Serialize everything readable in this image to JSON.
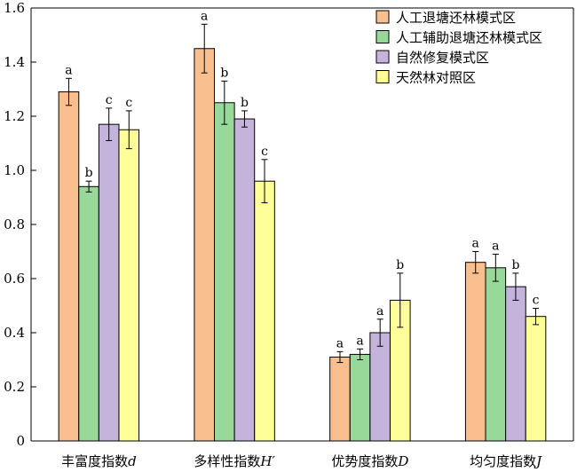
{
  "chart_data": {
    "type": "bar",
    "categories": [
      {
        "text": "丰富度指数",
        "symbol": "d"
      },
      {
        "text": "多样性指数",
        "symbol": "H′"
      },
      {
        "text": "优势度指数",
        "symbol": "D"
      },
      {
        "text": "均匀度指数",
        "symbol": "J"
      }
    ],
    "series": [
      {
        "name": "人工退塘还林模式区",
        "color": "#f9bf8f",
        "values": [
          1.29,
          1.45,
          0.31,
          0.66
        ],
        "errors": [
          0.05,
          0.09,
          0.02,
          0.04
        ],
        "letters": [
          "a",
          "a",
          "a",
          "a"
        ]
      },
      {
        "name": "人工辅助退塘还林模式区",
        "color": "#98d898",
        "values": [
          0.94,
          1.25,
          0.32,
          0.64
        ],
        "errors": [
          0.02,
          0.08,
          0.02,
          0.05
        ],
        "letters": [
          "b",
          "b",
          "a",
          "a"
        ]
      },
      {
        "name": "自然修复模式区",
        "color": "#c4b4dc",
        "values": [
          1.17,
          1.19,
          0.4,
          0.57
        ],
        "errors": [
          0.06,
          0.03,
          0.05,
          0.05
        ],
        "letters": [
          "c",
          "b",
          "a",
          "b"
        ]
      },
      {
        "name": "天然林对照区",
        "color": "#ffff99",
        "values": [
          1.15,
          0.96,
          0.52,
          0.46
        ],
        "errors": [
          0.07,
          0.08,
          0.1,
          0.03
        ],
        "letters": [
          "c",
          "c",
          "b",
          "c"
        ]
      }
    ],
    "ylim": [
      0,
      1.6
    ],
    "yticks": [
      "0",
      "0.2",
      "0.4",
      "0.6",
      "0.8",
      "1.0",
      "1.2",
      "1.4",
      "1.6"
    ],
    "xlabel": "",
    "ylabel": "",
    "legend_position": "top-right",
    "grid": false
  }
}
